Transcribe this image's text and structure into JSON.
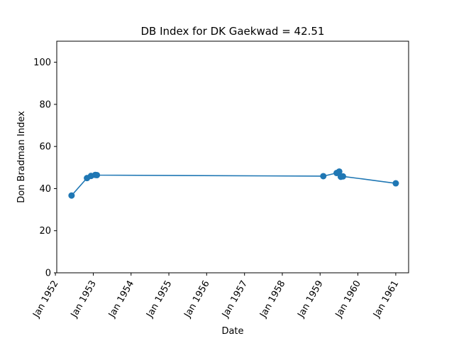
{
  "chart_data": {
    "type": "line",
    "title": "DB Index for DK Gaekwad = 42.51",
    "xlabel": "Date",
    "ylabel": "Don Bradman Index",
    "ylim": [
      0,
      110
    ],
    "xlim": [
      "1952-01-14",
      "1961-05-05"
    ],
    "yticks": [
      0,
      20,
      40,
      60,
      80,
      100
    ],
    "xticks": [
      "1952-01-01",
      "1953-01-01",
      "1954-01-01",
      "1955-01-01",
      "1956-01-01",
      "1957-01-01",
      "1958-01-01",
      "1959-01-01",
      "1960-01-01",
      "1961-01-01"
    ],
    "xtick_labels": [
      "Jan 1952",
      "Jan 1953",
      "Jan 1954",
      "Jan 1955",
      "Jan 1956",
      "Jan 1957",
      "Jan 1958",
      "Jan 1959",
      "Jan 1960",
      "Jan 1961"
    ],
    "grid": false,
    "series_color": "#1f77b4",
    "series": [
      {
        "x": [
          "1952-06-05",
          "1952-11-01",
          "1952-12-10",
          "1953-01-20",
          "1953-02-05",
          "1959-02-01",
          "1959-06-10",
          "1959-07-05",
          "1959-07-20",
          "1959-08-10",
          "1961-01-01"
        ],
        "values": [
          36.7,
          45.0,
          46.0,
          46.5,
          46.4,
          45.9,
          47.4,
          48.1,
          45.6,
          45.8,
          42.5
        ]
      }
    ]
  }
}
